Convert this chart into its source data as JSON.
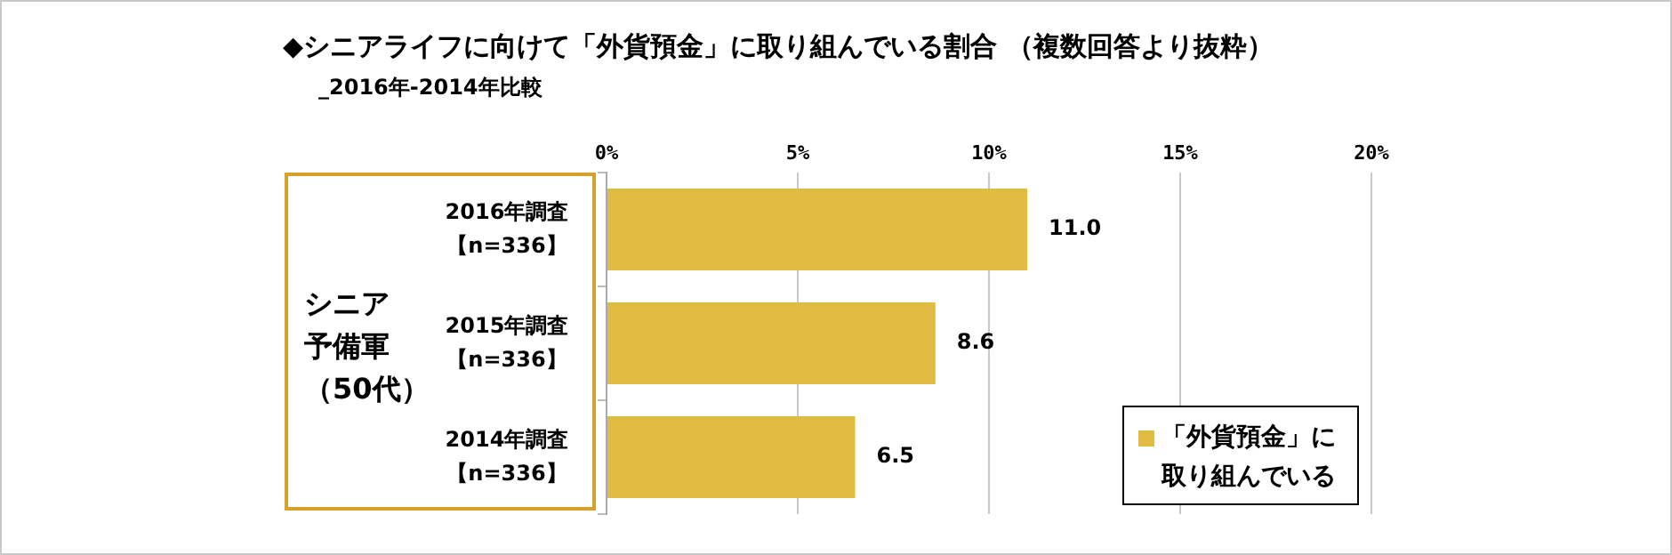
{
  "chart_data": {
    "type": "bar",
    "orientation": "horizontal",
    "title": "◆シニアライフに向けて「外貨預金」に取り組んでいる割合 （複数回答より抜粋）",
    "subtitle": "_2016年-2014年比較",
    "categories": [
      "2016年調査【n=336】",
      "2015年調査【n=336】",
      "2014年調査【n=336】"
    ],
    "series": [
      {
        "name": "「外貨預金」に取り組んでいる",
        "color": "#e0bc42",
        "values": [
          11.0,
          8.6,
          6.5
        ],
        "value_labels": [
          "11.0",
          "8.6",
          "6.5"
        ]
      }
    ],
    "xlim": [
      0,
      20
    ],
    "xticks": [
      {
        "value": 0,
        "label": "0%"
      },
      {
        "value": 5,
        "label": "5%"
      },
      {
        "value": 10,
        "label": "10%"
      },
      {
        "value": 15,
        "label": "15%"
      },
      {
        "value": 20,
        "label": "20%"
      }
    ],
    "grid": "x",
    "legend": "bottom right",
    "annotations": [
      "シニア予備軍（50代）"
    ]
  }
}
